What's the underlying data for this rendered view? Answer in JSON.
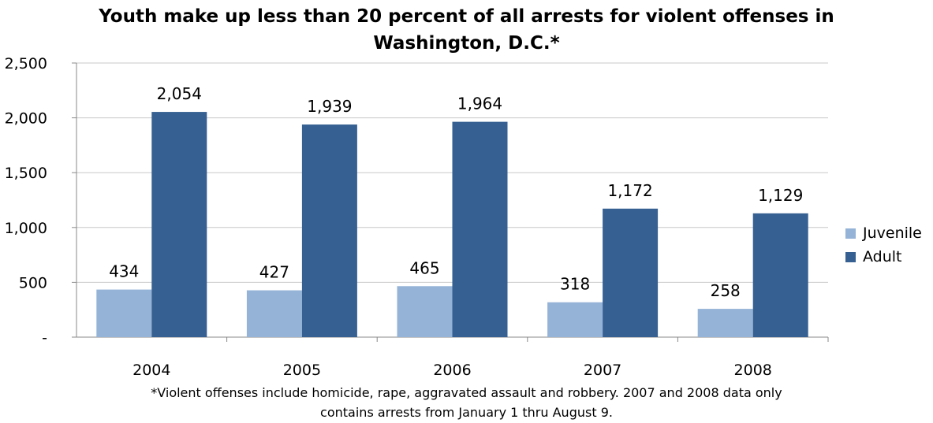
{
  "chart_data": {
    "type": "bar",
    "title_line1": "Youth make up less than 20 percent of all arrests for violent offenses in",
    "title_line2": "Washington, D.C.*",
    "categories": [
      "2004",
      "2005",
      "2006",
      "2007",
      "2008"
    ],
    "series": [
      {
        "name": "Juvenile",
        "color": "#95b3d7",
        "values": [
          434,
          427,
          465,
          318,
          258
        ],
        "labels": [
          "434",
          "427",
          "465",
          "318",
          "258"
        ]
      },
      {
        "name": "Adult",
        "color": "#366092",
        "values": [
          2054,
          1939,
          1964,
          1172,
          1129
        ],
        "labels": [
          "2,054",
          "1,939",
          "1,964",
          "1,172",
          "1,129"
        ]
      }
    ],
    "y_ticks": [
      0,
      500,
      1000,
      1500,
      2000,
      2500
    ],
    "y_tick_labels": [
      "-",
      "500",
      "1,000",
      "1,500",
      "2,000",
      "2,500"
    ],
    "ylim": [
      0,
      2500
    ],
    "grid": true,
    "legend_position": "right",
    "xlabel": "",
    "ylabel": ""
  },
  "footnote_line1": "*Violent offenses include homicide, rape, aggravated assault and robbery. 2007 and 2008 data only",
  "footnote_line2": "contains arrests from January 1 thru August 9."
}
